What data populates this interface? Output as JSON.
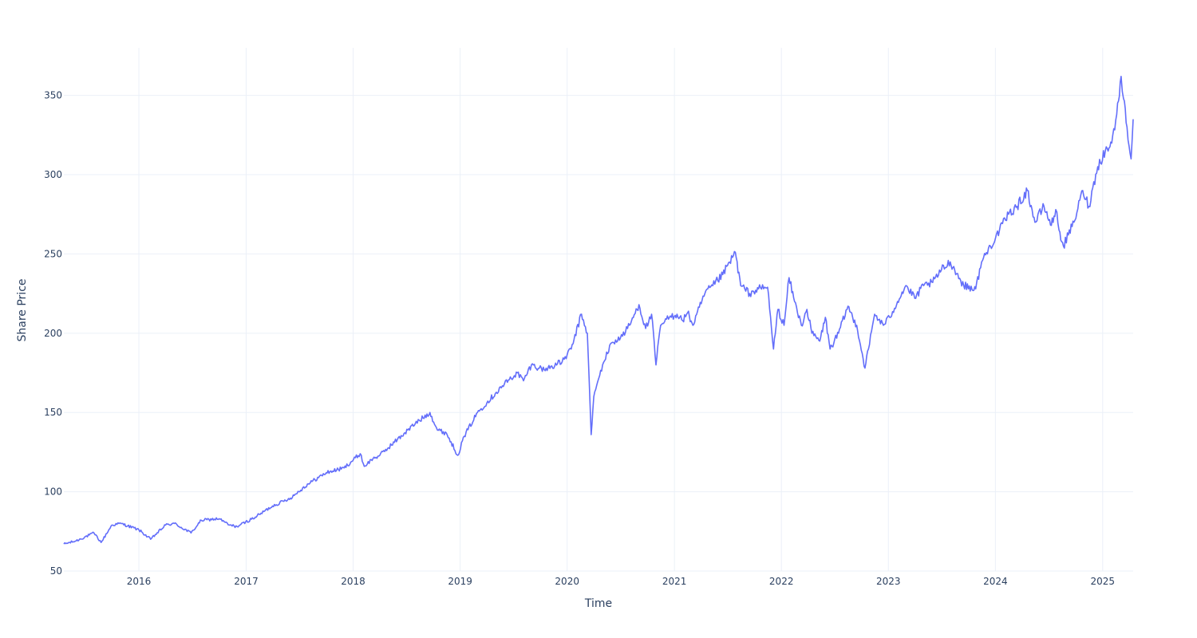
{
  "chart_data": {
    "type": "line",
    "title": "",
    "xlabel": "Time",
    "ylabel": "Share Price",
    "xlim": [
      "2015-04-20",
      "2025-04-15"
    ],
    "ylim": [
      50,
      380
    ],
    "x_ticks": [
      "2016",
      "2017",
      "2018",
      "2019",
      "2020",
      "2021",
      "2022",
      "2023",
      "2024",
      "2025"
    ],
    "y_ticks": [
      "50",
      "100",
      "150",
      "200",
      "250",
      "300",
      "350"
    ],
    "grid": true,
    "line_color": "#636efa",
    "series": [
      {
        "x": [
          "2015-04-20",
          "2015-06-01",
          "2015-08-01",
          "2015-08-25",
          "2015-10-01",
          "2015-11-01",
          "2016-01-01",
          "2016-02-10",
          "2016-04-01",
          "2016-05-01",
          "2016-06-27",
          "2016-08-01",
          "2016-10-01",
          "2016-11-04",
          "2016-12-01",
          "2017-02-01",
          "2017-04-01",
          "2017-06-01",
          "2017-08-01",
          "2017-10-01",
          "2017-12-01",
          "2018-01-25",
          "2018-02-08",
          "2018-03-10",
          "2018-04-02",
          "2018-06-01",
          "2018-08-01",
          "2018-09-20",
          "2018-10-15",
          "2018-11-15",
          "2018-12-24",
          "2019-01-15",
          "2019-03-01",
          "2019-05-01",
          "2019-06-01",
          "2019-07-15",
          "2019-08-05",
          "2019-09-01",
          "2019-10-15",
          "2019-12-15",
          "2020-01-15",
          "2020-02-19",
          "2020-03-10",
          "2020-03-23",
          "2020-04-01",
          "2020-05-01",
          "2020-06-01",
          "2020-07-01",
          "2020-08-01",
          "2020-09-02",
          "2020-09-25",
          "2020-10-15",
          "2020-10-30",
          "2020-11-15",
          "2020-12-15",
          "2021-01-10",
          "2021-01-29",
          "2021-02-15",
          "2021-03-05",
          "2021-04-15",
          "2021-05-12",
          "2021-06-15",
          "2021-07-28",
          "2021-08-15",
          "2021-09-15",
          "2021-10-15",
          "2021-11-15",
          "2021-12-05",
          "2021-12-20",
          "2022-01-10",
          "2022-01-27",
          "2022-02-15",
          "2022-03-10",
          "2022-03-29",
          "2022-04-15",
          "2022-05-12",
          "2022-05-31",
          "2022-06-16",
          "2022-07-15",
          "2022-08-16",
          "2022-09-01",
          "2022-09-15",
          "2022-10-13",
          "2022-10-25",
          "2022-11-15",
          "2022-12-15",
          "2023-01-05",
          "2023-02-01",
          "2023-03-01",
          "2023-04-01",
          "2023-05-01",
          "2023-06-01",
          "2023-07-01",
          "2023-07-31",
          "2023-08-15",
          "2023-09-15",
          "2023-10-26",
          "2023-11-15",
          "2023-12-15",
          "2024-01-15",
          "2024-02-15",
          "2024-03-15",
          "2024-04-19",
          "2024-05-15",
          "2024-06-15",
          "2024-07-10",
          "2024-07-25",
          "2024-08-05",
          "2024-08-20",
          "2024-09-06",
          "2024-09-25",
          "2024-10-25",
          "2024-11-15",
          "2024-12-15",
          "2025-01-10",
          "2025-02-01",
          "2025-02-18",
          "2025-03-05",
          "2025-03-13",
          "2025-03-25",
          "2025-04-08",
          "2025-04-15"
        ],
        "y": [
          67,
          69,
          74,
          68,
          79,
          80,
          76,
          70,
          79,
          80,
          74,
          82,
          83,
          79,
          78,
          84,
          91,
          96,
          105,
          112,
          115,
          124,
          116,
          121,
          123,
          133,
          143,
          150,
          139,
          137,
          123,
          135,
          150,
          162,
          168,
          175,
          170,
          180,
          177,
          182,
          190,
          212,
          200,
          136,
          160,
          180,
          194,
          197,
          205,
          218,
          203,
          212,
          180,
          205,
          210,
          212,
          208,
          213,
          205,
          225,
          230,
          237,
          251,
          230,
          225,
          228,
          229,
          190,
          215,
          205,
          235,
          220,
          205,
          215,
          200,
          195,
          210,
          190,
          200,
          217,
          210,
          205,
          178,
          190,
          212,
          205,
          210,
          220,
          230,
          222,
          230,
          232,
          240,
          245,
          240,
          230,
          228,
          245,
          255,
          265,
          275,
          280,
          290,
          270,
          280,
          268,
          278,
          265,
          255,
          262,
          270,
          290,
          280,
          305,
          315,
          320,
          338,
          362,
          348,
          330,
          310,
          335
        ]
      }
    ]
  }
}
